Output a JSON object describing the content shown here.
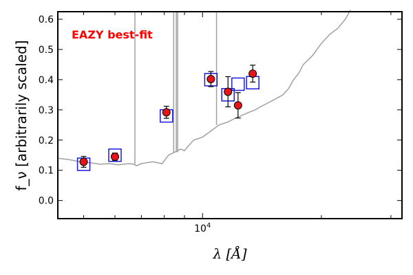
{
  "chart_data": {
    "type": "scatter",
    "annotation": "EAZY best-fit",
    "xlabel": "λ [Å]",
    "ylabel": "f_ν [arbitrarily scaled]",
    "xscale": "log",
    "xlim": [
      4300,
      32000
    ],
    "ylim": [
      -0.06,
      0.625
    ],
    "yticks": [
      0.0,
      0.1,
      0.2,
      0.3,
      0.4,
      0.5,
      0.6
    ],
    "ytick_labels": [
      "0.0",
      "0.1",
      "0.2",
      "0.3",
      "0.4",
      "0.5",
      "0.6"
    ],
    "xticks_major": [
      10000
    ],
    "xtick_labels": [
      "10^4"
    ],
    "xticks_minor": [
      5000,
      6000,
      7000,
      8000,
      9000,
      20000,
      30000
    ],
    "series": [
      {
        "role": "model",
        "color": "#a0a0a0",
        "x": [
          4300,
          4600,
          4900,
          5200,
          5500,
          5800,
          6100,
          6500,
          6700,
          6800,
          7000,
          7200,
          7500,
          7900,
          8200,
          8500,
          8800,
          9000,
          9200,
          9500,
          10000,
          10500,
          11000,
          11600,
          12000,
          12500,
          13000,
          13600,
          14000,
          14500,
          15000,
          15500,
          16000,
          16500,
          17000,
          17500,
          18000,
          19000,
          20000,
          21000,
          22000,
          23000,
          23700
        ],
        "y": [
          0.14,
          0.135,
          0.128,
          0.125,
          0.12,
          0.122,
          0.118,
          0.122,
          0.12,
          0.115,
          0.122,
          0.125,
          0.128,
          0.122,
          0.15,
          0.16,
          0.17,
          0.165,
          0.18,
          0.2,
          0.21,
          0.23,
          0.25,
          0.26,
          0.27,
          0.28,
          0.29,
          0.3,
          0.31,
          0.32,
          0.33,
          0.34,
          0.35,
          0.37,
          0.4,
          0.42,
          0.45,
          0.48,
          0.52,
          0.55,
          0.57,
          0.6,
          0.63
        ]
      },
      {
        "role": "model-lines",
        "color": "#a0a0a0",
        "x": [
          6740,
          8450,
          8580,
          8650,
          10850
        ],
        "y_top": [
          0.625,
          0.625,
          0.625,
          0.625,
          0.625
        ]
      },
      {
        "role": "model-photometry",
        "color": "#1a1adb",
        "x": [
          5000,
          6000,
          8100,
          10500,
          11600,
          12300,
          13400
        ],
        "y": [
          0.12,
          0.15,
          0.28,
          0.4,
          0.35,
          0.385,
          0.39
        ]
      },
      {
        "role": "observed",
        "color": "#e8141c",
        "x": [
          5000,
          6000,
          8100,
          10500,
          11600,
          12300,
          13400
        ],
        "y": [
          0.128,
          0.145,
          0.292,
          0.402,
          0.36,
          0.315,
          0.42
        ],
        "yerr": [
          0.018,
          0.012,
          0.02,
          0.025,
          0.05,
          0.042,
          0.028
        ]
      }
    ]
  }
}
